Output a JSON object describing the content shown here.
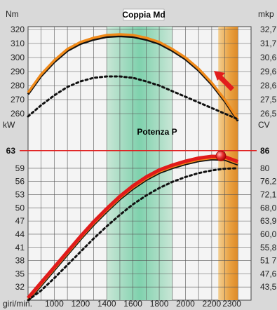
{
  "chart_data": {
    "type": "line",
    "title_torque": "Coppia Md",
    "title_power": "Potenza P",
    "left_unit_torque": "Nm",
    "left_unit_power": "kW",
    "right_unit_torque": "mkp",
    "right_unit_power": "CV",
    "x_axis_label": "giri/min.",
    "x_ticks": [
      "1000",
      "1200",
      "1400",
      "1600",
      "1800",
      "2000",
      "2200",
      "2300"
    ],
    "torque_left_ticks": [
      "320",
      "310",
      "300",
      "290",
      "280",
      "270",
      "260"
    ],
    "torque_right_ticks": [
      "32,7",
      "31,7",
      "30,6",
      "29,6",
      "28,6",
      "27,5",
      "26,5"
    ],
    "power_left_ticks": [
      "63",
      "59",
      "56",
      "53",
      "50",
      "47",
      "44",
      "41",
      "38",
      "35",
      "32"
    ],
    "power_right_ticks": [
      "86",
      "80",
      "76,2",
      "72,1",
      "68,0",
      "63,9",
      "60,0",
      "55,8",
      "51 7",
      "47,6",
      "43,5"
    ],
    "highlighted_power_kw": "63",
    "highlighted_power_cv": "86",
    "torque_range": [
      255,
      322
    ],
    "power_range": [
      29,
      66
    ],
    "rpm_range": [
      800,
      2500
    ],
    "green_band_rpm": [
      1400,
      1900
    ],
    "orange_band_rpm": [
      2250,
      2400
    ],
    "series": [
      {
        "x": [
          800,
          900,
          1000,
          1100,
          1200,
          1300,
          1400,
          1500,
          1600,
          1700,
          1800,
          1900,
          2000,
          2100,
          2200,
          2300,
          2400
        ],
        "y": [
          275,
          288,
          298,
          306,
          311,
          314,
          316,
          316.5,
          316,
          314,
          311,
          306,
          300,
          292,
          282,
          270,
          256
        ]
      },
      {
        "x": [
          800,
          900,
          1000,
          1100,
          1200,
          1300,
          1400,
          1500,
          1600,
          1700,
          1800,
          1900,
          2000,
          2100,
          2200,
          2300,
          2400
        ],
        "y": [
          258,
          266,
          273,
          279,
          283,
          285.5,
          286.5,
          286.5,
          285.5,
          283,
          280,
          276,
          272,
          268,
          264,
          260,
          256
        ]
      },
      {
        "x": [
          800,
          900,
          1000,
          1100,
          1200,
          1300,
          1400,
          1500,
          1600,
          1700,
          1800,
          1900,
          2000,
          2100,
          2200,
          2300,
          2400
        ],
        "y": [
          29.5,
          33,
          36.5,
          40,
          43.5,
          46.8,
          49.8,
          52.6,
          55,
          57,
          58.6,
          59.7,
          60.6,
          61.3,
          61.7,
          61.6,
          60.5
        ]
      },
      {
        "x": [
          800,
          900,
          1000,
          1100,
          1200,
          1300,
          1400,
          1500,
          1600,
          1700,
          1800,
          1900,
          2000,
          2100,
          2200,
          2300,
          2400
        ],
        "y": [
          29,
          31.2,
          34,
          37,
          40,
          43,
          45.8,
          48.4,
          50.8,
          52.8,
          54.5,
          55.9,
          57,
          57.9,
          58.5,
          58.9,
          59
        ]
      }
    ],
    "marker_point": {
      "x": 2270,
      "y": 61.8
    }
  }
}
